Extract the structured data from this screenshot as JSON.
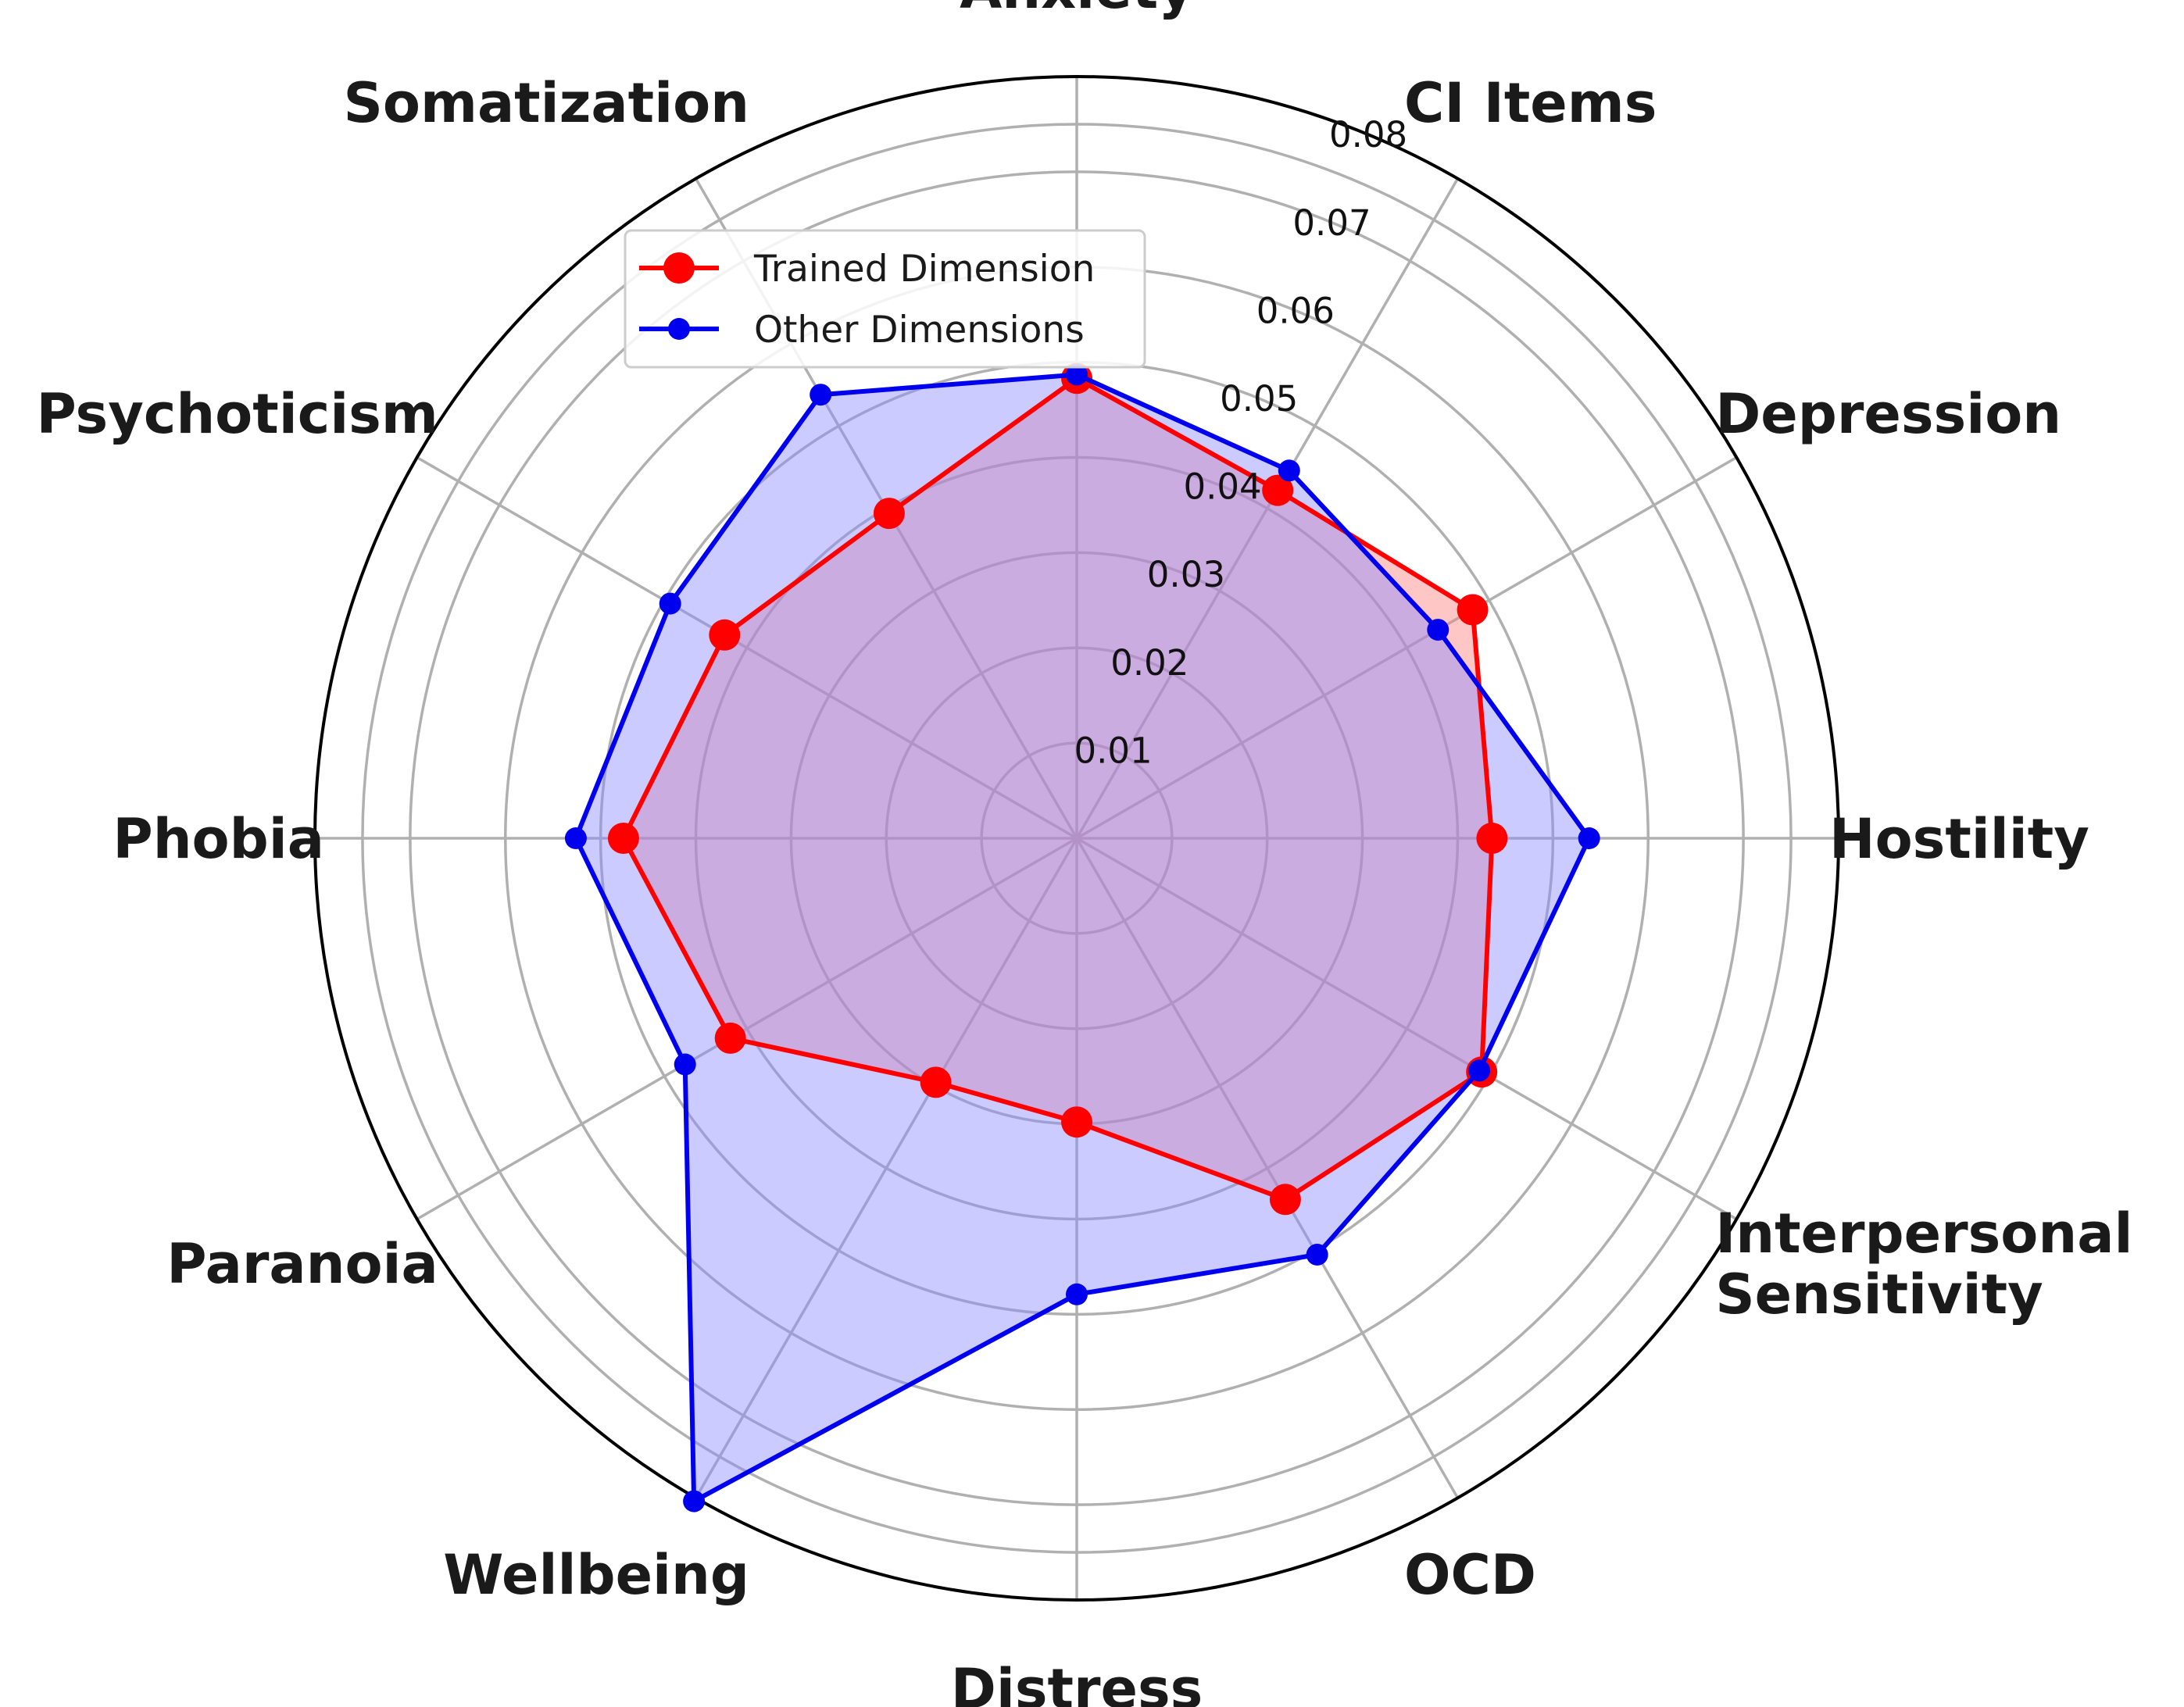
{
  "chart_data": {
    "type": "radar",
    "categories": [
      "Anxiety",
      "CI Items",
      "Depression",
      "Hostility",
      "Interpersonal Sensitivity",
      "OCD",
      "Distress",
      "Wellbeing",
      "Paranoia",
      "Phobia",
      "Psychoticism",
      "Somatization"
    ],
    "category_lines": [
      [
        "Anxiety"
      ],
      [
        "CI Items"
      ],
      [
        "Depression"
      ],
      [
        "Hostility"
      ],
      [
        "Interpersonal",
        "Sensitivity"
      ],
      [
        "OCD"
      ],
      [
        "Distress"
      ],
      [
        "Wellbeing"
      ],
      [
        "Paranoia"
      ],
      [
        "Phobia"
      ],
      [
        "Psychoticism"
      ],
      [
        "Somatization"
      ]
    ],
    "rlim": [
      0,
      0.08
    ],
    "r_ticks": [
      0.01,
      0.02,
      0.03,
      0.04,
      0.05,
      0.06,
      0.07,
      0.08
    ],
    "r_tick_labels": [
      "0.01",
      "0.02",
      "0.03",
      "0.04",
      "0.05",
      "0.06",
      "0.07",
      "0.08"
    ],
    "grid": true,
    "legend_position": "upper-left",
    "series": [
      {
        "name": "Trained Dimension",
        "color": "#ff0000",
        "fill": "#ff8080",
        "values": [
          0.0483,
          0.0422,
          0.048,
          0.0436,
          0.0491,
          0.0438,
          0.0298,
          0.0296,
          0.042,
          0.0476,
          0.0427,
          0.0394
        ]
      },
      {
        "name": "Other Dimensions",
        "color": "#0000ee",
        "fill": "#8c8cff",
        "values": [
          0.0487,
          0.0446,
          0.0438,
          0.0538,
          0.0488,
          0.0505,
          0.0479,
          0.0804,
          0.0475,
          0.0526,
          0.0493,
          0.0538
        ]
      }
    ]
  }
}
